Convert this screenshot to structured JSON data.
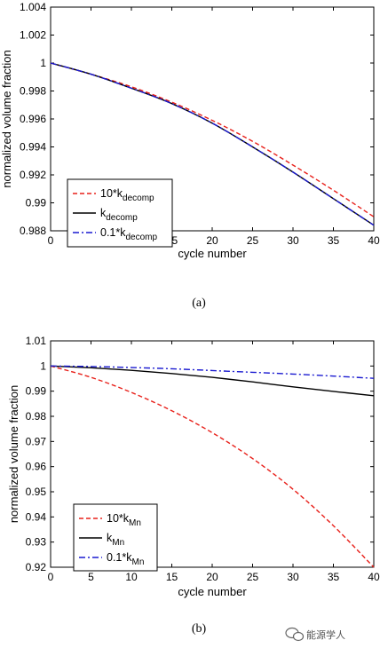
{
  "watermark": {
    "text": "能源学人",
    "icon": "wechat-icon"
  },
  "chart_data": [
    {
      "type": "line",
      "caption": "(a)",
      "xlabel": "cycle number",
      "ylabel": "normalized volume fraction",
      "xlim": [
        0,
        40
      ],
      "ylim": [
        0.988,
        1.004
      ],
      "xticks": [
        0,
        5,
        10,
        15,
        20,
        25,
        30,
        35,
        40
      ],
      "yticks": [
        0.988,
        0.99,
        0.992,
        0.994,
        0.996,
        0.998,
        1,
        1.002,
        1.004
      ],
      "ytick_labels": [
        "0.988",
        "0.99",
        "0.992",
        "0.994",
        "0.996",
        "0.998",
        "1",
        "1.002",
        "1.004"
      ],
      "legend_position": "bottom-left",
      "x": [
        0,
        5,
        10,
        15,
        20,
        25,
        30,
        35,
        40
      ],
      "series": [
        {
          "name_main": "10*k",
          "name_sub": "decomp",
          "color": "#e8201a",
          "dash": "5,3",
          "values": [
            1.0,
            0.9992,
            0.9983,
            0.9972,
            0.9959,
            0.9944,
            0.9927,
            0.9909,
            0.989
          ]
        },
        {
          "name_main": "k",
          "name_sub": "decomp",
          "color": "#000000",
          "dash": "",
          "values": [
            1.0,
            0.9992,
            0.9982,
            0.9971,
            0.9957,
            0.994,
            0.9922,
            0.9903,
            0.9884
          ]
        },
        {
          "name_main": "0.1*k",
          "name_sub": "decomp",
          "color": "#1a1ad0",
          "dash": "7,3,2,3",
          "values": [
            1.0,
            0.9992,
            0.9982,
            0.9971,
            0.9957,
            0.994,
            0.9922,
            0.9903,
            0.9884
          ]
        }
      ]
    },
    {
      "type": "line",
      "caption": "(b)",
      "xlabel": "cycle number",
      "ylabel": "normalized volume fraction",
      "xlim": [
        0,
        40
      ],
      "ylim": [
        0.92,
        1.01
      ],
      "xticks": [
        0,
        5,
        10,
        15,
        20,
        25,
        30,
        35,
        40
      ],
      "yticks": [
        0.92,
        0.93,
        0.94,
        0.95,
        0.96,
        0.97,
        0.98,
        0.99,
        1,
        1.01
      ],
      "ytick_labels": [
        "0.92",
        "0.93",
        "0.94",
        "0.95",
        "0.96",
        "0.97",
        "0.98",
        "0.99",
        "1",
        "1.01"
      ],
      "legend_position": "bottom-left",
      "x": [
        0,
        5,
        10,
        15,
        20,
        25,
        30,
        35,
        40
      ],
      "series": [
        {
          "name_main": "10*k",
          "name_sub": "Mn",
          "color": "#e8201a",
          "dash": "5,3",
          "values": [
            1.0,
            0.9955,
            0.9895,
            0.9822,
            0.9735,
            0.9632,
            0.951,
            0.9365,
            0.92
          ]
        },
        {
          "name_main": "k",
          "name_sub": "Mn",
          "color": "#000000",
          "dash": "",
          "values": [
            1.0,
            0.9993,
            0.9983,
            0.997,
            0.9955,
            0.9937,
            0.9917,
            0.9899,
            0.9882
          ]
        },
        {
          "name_main": "0.1*k",
          "name_sub": "Mn",
          "color": "#1a1ad0",
          "dash": "7,3,2,3",
          "values": [
            1.0,
            0.9998,
            0.9994,
            0.9989,
            0.9982,
            0.9975,
            0.9968,
            0.996,
            0.9951
          ]
        }
      ]
    }
  ]
}
